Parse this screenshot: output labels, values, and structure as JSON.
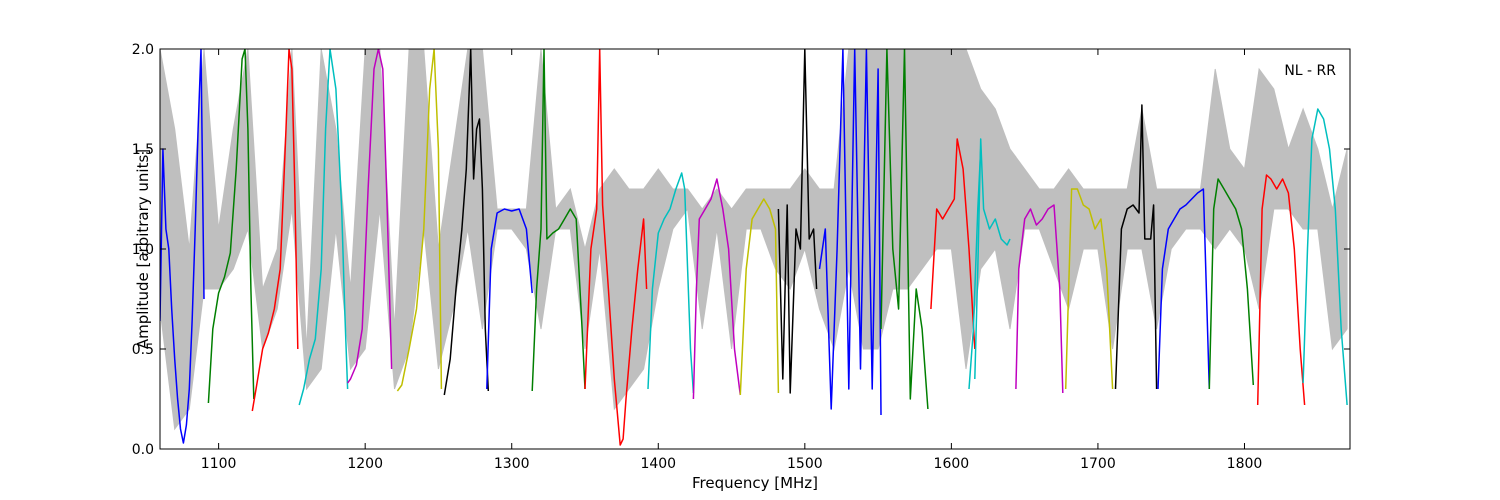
{
  "chart_data": {
    "type": "line",
    "title": "",
    "xlabel": "Frequency [MHz]",
    "ylabel": "Amplitude [arbitrary units]",
    "xlim": [
      1060,
      1872
    ],
    "ylim": [
      0.0,
      2.0
    ],
    "xticks": [
      1100,
      1200,
      1300,
      1400,
      1500,
      1600,
      1700,
      1800
    ],
    "yticks": [
      0.0,
      0.5,
      1.0,
      1.5,
      2.0
    ],
    "xtick_labels": [
      "1100",
      "1200",
      "1300",
      "1400",
      "1500",
      "1600",
      "1700",
      "1800"
    ],
    "ytick_labels": [
      "0.0",
      "0.5",
      "1.0",
      "1.5",
      "2.0"
    ],
    "grid": false,
    "annotation": "NL - RR",
    "annotation_position": "top-right",
    "background_envelope": {
      "color": "#bfbfbf",
      "x": [
        1060,
        1070,
        1080,
        1090,
        1100,
        1110,
        1120,
        1130,
        1140,
        1150,
        1160,
        1170,
        1180,
        1190,
        1200,
        1210,
        1220,
        1230,
        1240,
        1250,
        1260,
        1270,
        1280,
        1290,
        1300,
        1310,
        1320,
        1330,
        1340,
        1350,
        1360,
        1370,
        1380,
        1390,
        1400,
        1410,
        1420,
        1430,
        1440,
        1450,
        1460,
        1470,
        1480,
        1490,
        1500,
        1510,
        1520,
        1530,
        1540,
        1550,
        1560,
        1570,
        1580,
        1590,
        1600,
        1610,
        1620,
        1630,
        1640,
        1650,
        1660,
        1670,
        1680,
        1690,
        1700,
        1710,
        1720,
        1730,
        1740,
        1750,
        1760,
        1770,
        1780,
        1790,
        1800,
        1810,
        1820,
        1830,
        1840,
        1850,
        1860,
        1870
      ],
      "low": [
        0.7,
        0.1,
        0.2,
        0.8,
        0.8,
        0.9,
        1.1,
        0.5,
        0.7,
        1.2,
        0.3,
        0.4,
        1.1,
        0.4,
        0.5,
        1.2,
        0.3,
        0.5,
        1.1,
        0.4,
        0.7,
        1.1,
        0.6,
        1.1,
        1.1,
        1.0,
        0.6,
        1.1,
        1.1,
        0.5,
        1.0,
        0.2,
        0.3,
        0.4,
        0.8,
        1.1,
        1.2,
        0.6,
        1.1,
        0.5,
        1.1,
        1.1,
        0.9,
        0.8,
        1.0,
        0.7,
        0.5,
        0.9,
        0.5,
        0.5,
        0.8,
        0.8,
        0.9,
        1.0,
        1.0,
        0.4,
        0.9,
        1.0,
        0.6,
        1.1,
        1.1,
        0.9,
        0.7,
        1.0,
        1.0,
        0.5,
        1.0,
        1.0,
        0.6,
        1.0,
        1.1,
        1.1,
        1.0,
        1.1,
        1.0,
        0.7,
        1.2,
        1.2,
        1.1,
        1.1,
        0.5,
        0.6
      ],
      "high": [
        2.0,
        1.6,
        1.0,
        2.0,
        1.1,
        1.6,
        2.0,
        0.8,
        1.0,
        2.0,
        0.5,
        2.0,
        1.6,
        0.8,
        2.0,
        2.0,
        0.6,
        2.0,
        2.0,
        1.0,
        1.5,
        2.0,
        2.0,
        1.2,
        1.2,
        1.2,
        2.0,
        1.2,
        1.3,
        1.0,
        1.3,
        1.4,
        1.3,
        1.3,
        1.4,
        1.3,
        1.3,
        1.2,
        1.3,
        1.2,
        1.3,
        1.3,
        1.3,
        1.3,
        1.4,
        1.3,
        1.3,
        2.0,
        2.0,
        2.0,
        2.0,
        2.0,
        2.0,
        2.0,
        2.0,
        2.0,
        1.8,
        1.7,
        1.5,
        1.4,
        1.3,
        1.3,
        1.4,
        1.3,
        1.3,
        1.3,
        1.3,
        1.7,
        1.3,
        1.3,
        1.3,
        1.3,
        1.9,
        1.5,
        1.4,
        1.9,
        1.8,
        1.5,
        1.7,
        1.5,
        1.2,
        1.5
      ]
    },
    "series": [
      {
        "color": "#0000ff",
        "x": [
          1060,
          1062,
          1064,
          1066,
          1068,
          1070,
          1072,
          1074,
          1076,
          1078,
          1080,
          1082,
          1084,
          1086,
          1088,
          1090
        ],
        "values": [
          0.64,
          1.5,
          1.1,
          1.0,
          0.7,
          0.45,
          0.25,
          0.1,
          0.03,
          0.12,
          0.3,
          0.65,
          1.1,
          1.6,
          2.0,
          0.75
        ]
      },
      {
        "color": "#007f00",
        "x": [
          1093,
          1096,
          1100,
          1104,
          1108,
          1112,
          1116,
          1118,
          1120,
          1122,
          1124
        ],
        "values": [
          0.23,
          0.6,
          0.78,
          0.86,
          0.98,
          1.4,
          1.95,
          2.0,
          1.6,
          0.8,
          0.25
        ]
      },
      {
        "color": "#ff0000",
        "x": [
          1123,
          1126,
          1130,
          1134,
          1138,
          1142,
          1146,
          1148,
          1150,
          1152,
          1154
        ],
        "values": [
          0.19,
          0.32,
          0.5,
          0.58,
          0.7,
          0.9,
          1.6,
          2.0,
          1.9,
          1.3,
          0.5
        ]
      },
      {
        "color": "#00bfbf",
        "x": [
          1155,
          1158,
          1162,
          1166,
          1170,
          1173,
          1176,
          1180,
          1184,
          1186,
          1188
        ],
        "values": [
          0.22,
          0.3,
          0.45,
          0.55,
          0.9,
          1.6,
          2.0,
          1.8,
          1.2,
          0.7,
          0.3
        ]
      },
      {
        "color": "#bf00bf",
        "x": [
          1188,
          1190,
          1194,
          1198,
          1202,
          1206,
          1209,
          1212,
          1215,
          1218
        ],
        "values": [
          0.33,
          0.35,
          0.42,
          0.6,
          1.3,
          1.9,
          2.0,
          1.9,
          1.2,
          0.4
        ]
      },
      {
        "color": "#bfbf00",
        "x": [
          1222,
          1225,
          1230,
          1235,
          1240,
          1244,
          1247,
          1250,
          1252
        ],
        "values": [
          0.29,
          0.32,
          0.5,
          0.7,
          1.1,
          1.8,
          2.0,
          1.5,
          0.3
        ]
      },
      {
        "color": "#000000",
        "x": [
          1254,
          1258,
          1262,
          1266,
          1269,
          1272,
          1274,
          1276,
          1278,
          1280,
          1282,
          1284
        ],
        "values": [
          0.27,
          0.45,
          0.8,
          1.1,
          1.4,
          2.0,
          1.35,
          1.6,
          1.65,
          1.3,
          0.6,
          0.29
        ]
      },
      {
        "color": "#0000ff",
        "x": [
          1283,
          1286,
          1290,
          1295,
          1300,
          1305,
          1310,
          1314
        ],
        "values": [
          0.3,
          1.0,
          1.18,
          1.2,
          1.19,
          1.2,
          1.1,
          0.78
        ]
      },
      {
        "color": "#007f00",
        "x": [
          1314,
          1317,
          1320,
          1322,
          1324,
          1328,
          1332,
          1336,
          1340,
          1344,
          1348,
          1350
        ],
        "values": [
          0.29,
          0.8,
          1.1,
          2.0,
          1.05,
          1.08,
          1.1,
          1.15,
          1.2,
          1.15,
          0.6,
          0.3
        ]
      },
      {
        "color": "#ff0000",
        "x": [
          1350,
          1354,
          1358,
          1360,
          1362,
          1366,
          1370,
          1374,
          1376,
          1378,
          1382,
          1386,
          1390,
          1392
        ],
        "values": [
          0.3,
          1.0,
          1.2,
          2.0,
          1.22,
          0.8,
          0.35,
          0.02,
          0.05,
          0.25,
          0.6,
          0.9,
          1.15,
          0.8
        ]
      },
      {
        "color": "#00bfbf",
        "x": [
          1393,
          1396,
          1400,
          1404,
          1408,
          1412,
          1416,
          1418,
          1420,
          1422,
          1424
        ],
        "values": [
          0.3,
          0.8,
          1.08,
          1.15,
          1.2,
          1.3,
          1.38,
          1.3,
          0.9,
          0.5,
          0.28
        ]
      },
      {
        "color": "#bf00bf",
        "x": [
          1424,
          1426,
          1428,
          1432,
          1436,
          1440,
          1444,
          1448,
          1452,
          1456
        ],
        "values": [
          0.25,
          0.8,
          1.15,
          1.2,
          1.25,
          1.35,
          1.2,
          1.0,
          0.5,
          0.27
        ]
      },
      {
        "color": "#bfbf00",
        "x": [
          1456,
          1460,
          1464,
          1468,
          1472,
          1476,
          1480,
          1482
        ],
        "values": [
          0.27,
          0.9,
          1.15,
          1.2,
          1.25,
          1.2,
          1.1,
          0.28
        ]
      },
      {
        "color": "#000000",
        "x": [
          1482,
          1485,
          1488,
          1490,
          1494,
          1497,
          1500,
          1503,
          1506,
          1508
        ],
        "values": [
          1.2,
          0.35,
          1.22,
          0.28,
          1.1,
          1.0,
          2.0,
          1.05,
          1.1,
          0.8
        ]
      },
      {
        "color": "#0000ff",
        "x": [
          1510,
          1514,
          1518,
          1522,
          1526,
          1530,
          1534,
          1538,
          1542,
          1546,
          1550,
          1552
        ],
        "values": [
          0.9,
          1.1,
          0.2,
          1.0,
          2.0,
          0.3,
          2.0,
          0.4,
          2.0,
          0.3,
          1.9,
          0.17
        ]
      },
      {
        "color": "#007f00",
        "x": [
          1552,
          1556,
          1560,
          1564,
          1568,
          1572,
          1576,
          1580,
          1584
        ],
        "values": [
          0.6,
          2.0,
          1.0,
          0.7,
          2.0,
          0.25,
          0.8,
          0.6,
          0.2
        ]
      },
      {
        "color": "#ff0000",
        "x": [
          1586,
          1590,
          1594,
          1598,
          1602,
          1604,
          1608,
          1612,
          1616
        ],
        "values": [
          0.7,
          1.2,
          1.15,
          1.2,
          1.25,
          1.55,
          1.4,
          1.0,
          0.5
        ]
      },
      {
        "color": "#00bfbf",
        "x": [
          1616,
          1618,
          1620,
          1622,
          1626,
          1630,
          1634,
          1638,
          1640
        ],
        "values": [
          0.35,
          0.9,
          1.55,
          1.2,
          1.1,
          1.15,
          1.05,
          1.02,
          1.05
        ]
      },
      {
        "color": "#00bfbf",
        "x": [
          1612,
          1615,
          1618,
          1620
        ],
        "values": [
          0.3,
          0.6,
          1.2,
          1.5
        ]
      },
      {
        "color": "#bf00bf",
        "x": [
          1644,
          1646,
          1650,
          1654,
          1658,
          1662,
          1666,
          1670,
          1674,
          1676
        ],
        "values": [
          0.3,
          0.9,
          1.15,
          1.2,
          1.12,
          1.15,
          1.2,
          1.22,
          0.8,
          0.28
        ]
      },
      {
        "color": "#bfbf00",
        "x": [
          1678,
          1682,
          1686,
          1690,
          1694,
          1698,
          1702,
          1706,
          1710
        ],
        "values": [
          0.3,
          1.3,
          1.3,
          1.22,
          1.2,
          1.1,
          1.15,
          0.9,
          0.3
        ]
      },
      {
        "color": "#000000",
        "x": [
          1712,
          1716,
          1720,
          1724,
          1728,
          1730,
          1732,
          1736,
          1738,
          1740
        ],
        "values": [
          0.3,
          1.1,
          1.2,
          1.22,
          1.18,
          1.72,
          1.05,
          1.05,
          1.22,
          0.3
        ]
      },
      {
        "color": "#0000ff",
        "x": [
          1741,
          1744,
          1748,
          1752,
          1756,
          1760,
          1764,
          1768,
          1772,
          1776
        ],
        "values": [
          0.3,
          0.9,
          1.1,
          1.15,
          1.2,
          1.22,
          1.25,
          1.28,
          1.3,
          0.3
        ]
      },
      {
        "color": "#007f00",
        "x": [
          1776,
          1779,
          1782,
          1786,
          1790,
          1794,
          1798,
          1802,
          1806
        ],
        "values": [
          0.3,
          1.2,
          1.35,
          1.3,
          1.25,
          1.2,
          1.1,
          0.8,
          0.32
        ]
      },
      {
        "color": "#ff0000",
        "x": [
          1809,
          1812,
          1815,
          1818,
          1822,
          1826,
          1830,
          1834,
          1838,
          1841
        ],
        "values": [
          0.22,
          1.2,
          1.37,
          1.35,
          1.3,
          1.35,
          1.28,
          1.0,
          0.5,
          0.22
        ]
      },
      {
        "color": "#00bfbf",
        "x": [
          1840,
          1843,
          1846,
          1850,
          1854,
          1858,
          1862,
          1866,
          1870
        ],
        "values": [
          0.33,
          1.0,
          1.55,
          1.7,
          1.65,
          1.5,
          1.2,
          0.6,
          0.22
        ]
      }
    ]
  }
}
